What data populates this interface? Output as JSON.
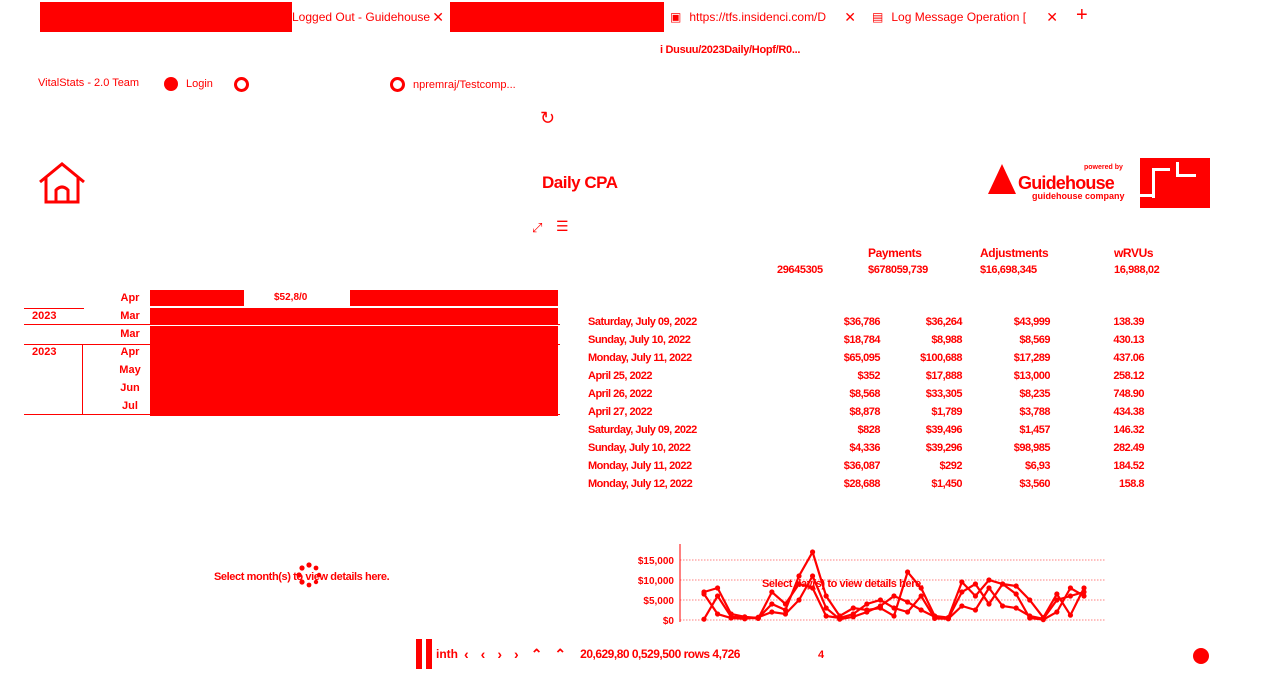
{
  "tabs": [
    {
      "label": "",
      "redacted": true
    },
    {
      "label": "Logged Out - Guidehouse",
      "icon": "close-icon"
    },
    {
      "label": "",
      "redacted": true
    },
    {
      "label": "https://tfs.insidenci.com/D",
      "icon": "file-icon"
    },
    {
      "label": "Log Message Operation [",
      "icon": "log-icon"
    }
  ],
  "new_tab_label": "+",
  "address_bar": {
    "text": "i Dusuu/2023Daily/Hopf/R0..."
  },
  "bookmarks": [
    {
      "label": "VitalStats - 2.0 Team"
    },
    {
      "label": "Login"
    },
    {
      "label": ""
    },
    {
      "label": "npremraj/Testcomp..."
    }
  ],
  "page": {
    "title": "Daily CPA",
    "logo": {
      "name": "Guidehouse",
      "powered": "powered by",
      "sub": "guidehouse company"
    }
  },
  "kpis": [
    {
      "label": "",
      "value": "29645305"
    },
    {
      "label": "Payments",
      "value": "$678059,739"
    },
    {
      "label": "Adjustments",
      "value": "$16,698,345"
    },
    {
      "label": "wRVUs",
      "value": "16,988,02"
    }
  ],
  "calendar": {
    "top_label": "$52,8/0",
    "rows": [
      {
        "year": "",
        "month": "Apr"
      },
      {
        "year": "2023",
        "month": "Mar"
      },
      {
        "year": "",
        "month": "Mar"
      },
      {
        "year": "2023",
        "month": "Apr"
      },
      {
        "year": "",
        "month": "May"
      },
      {
        "year": "",
        "month": "Jun"
      },
      {
        "year": "",
        "month": "Jul"
      }
    ]
  },
  "daily_rows": [
    {
      "date": "Saturday, July 09, 2022",
      "c1": "$36,786",
      "c2": "$36,264",
      "c3": "$43,999",
      "c4": "138.39"
    },
    {
      "date": "Sunday, July 10, 2022",
      "c1": "$18,784",
      "c2": "$8,988",
      "c3": "$8,569",
      "c4": "430.13"
    },
    {
      "date": "Monday, July 11, 2022",
      "c1": "$65,095",
      "c2": "$100,688",
      "c3": "$17,289",
      "c4": "437.06"
    },
    {
      "date": "April 25, 2022",
      "c1": "$352",
      "c2": "$17,888",
      "c3": "$13,000",
      "c4": "258.12"
    },
    {
      "date": "April 26, 2022",
      "c1": "$8,568",
      "c2": "$33,305",
      "c3": "$8,235",
      "c4": "748.90"
    },
    {
      "date": "April 27, 2022",
      "c1": "$8,878",
      "c2": "$1,789",
      "c3": "$3,788",
      "c4": "434.38"
    },
    {
      "date": "Saturday, July 09, 2022",
      "c1": "$828",
      "c2": "$39,496",
      "c3": "$1,457",
      "c4": "146.32"
    },
    {
      "date": "Sunday, July 10, 2022",
      "c1": "$4,336",
      "c2": "$39,296",
      "c3": "$98,985",
      "c4": "282.49"
    },
    {
      "date": "Monday, July 11, 2022",
      "c1": "$36,087",
      "c2": "$292",
      "c3": "$6,93",
      "c4": "184.52"
    },
    {
      "date": "Monday, July 12, 2022",
      "c1": "$28,688",
      "c2": "$1,450",
      "c3": "$3,560",
      "c4": "158.8"
    }
  ],
  "left_message": "Select month(s) to view details here.",
  "chart_message": "Select day(s) to view details here.",
  "chart_data": {
    "type": "line",
    "yticks": [
      "$15,000",
      "$10,000",
      "$5,000",
      "$0"
    ],
    "ylim": [
      0,
      17000
    ],
    "series": [
      {
        "values": [
          7000,
          8000,
          1500,
          800,
          500,
          4000,
          2500,
          11000,
          17000,
          6000,
          1000,
          3000,
          2500,
          3000,
          1000,
          12000,
          8000,
          1000,
          600,
          9500,
          6000,
          10000,
          9000,
          8500,
          5000,
          600,
          6500,
          1200,
          8000
        ]
      },
      {
        "values": [
          200,
          6000,
          800,
          600,
          400,
          7000,
          4000,
          9000,
          8000,
          1000,
          500,
          1500,
          4000,
          5000,
          3000,
          2000,
          6000,
          400,
          300,
          3500,
          2500,
          8000,
          3500,
          3000,
          1000,
          300,
          5000,
          6000,
          7000
        ]
      },
      {
        "values": [
          6500,
          1500,
          500,
          300,
          700,
          2000,
          1500,
          5000,
          11000,
          3000,
          200,
          800,
          2000,
          3500,
          6000,
          4500,
          2500,
          800,
          400,
          7000,
          9000,
          4000,
          9000,
          6500,
          500,
          100,
          2000,
          8000,
          6000
        ]
      }
    ]
  },
  "pager": {
    "first_label": "inth",
    "text": "20,629,80 0,529,500 rows 4,726",
    "page": "4"
  }
}
